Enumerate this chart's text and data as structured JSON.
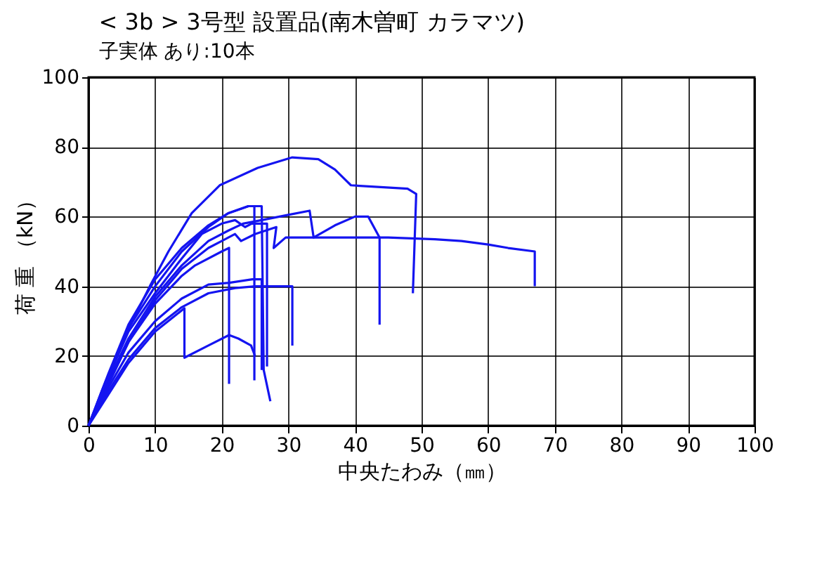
{
  "chart_data": {
    "type": "line",
    "title": "< 3b >  3号型  設置品(南木曽町  カラマツ)",
    "subtitle": "子実体 あり:10本",
    "xlabel": "中央たわみ（㎜）",
    "ylabel": "荷 重 （kN）",
    "xlim": [
      0,
      100
    ],
    "xticks": [
      0,
      10,
      20,
      30,
      40,
      50,
      60,
      70,
      80,
      90,
      100
    ],
    "ylim": [
      0,
      100
    ],
    "yticks": [
      0,
      20,
      40,
      60,
      80,
      100
    ],
    "grid": true,
    "legend": false,
    "marker": "none",
    "line_style": "solid",
    "series": [
      {
        "color": "#1414f0",
        "x": [
          0,
          2,
          5,
          9.2,
          12,
          15.5,
          19.7,
          25.4,
          30.6,
          34.5,
          37,
          39.4,
          47.9,
          49.2,
          48.7
        ],
        "values": [
          0,
          10,
          24,
          40,
          50,
          61,
          69,
          74,
          77,
          76.5,
          73.5,
          69,
          68,
          66.5,
          38
        ]
      },
      {
        "color": "#1414f0",
        "x": [
          0,
          3,
          6,
          10,
          14,
          18,
          20,
          22,
          22.9,
          25,
          28.2,
          27.8,
          29.6,
          35,
          45,
          52,
          56,
          60,
          63,
          67,
          67,
          67
        ],
        "values": [
          0,
          12,
          24,
          36,
          45,
          51,
          53,
          55,
          53,
          55,
          57,
          51,
          54,
          54,
          54,
          53.5,
          53,
          52,
          51,
          50,
          47,
          40
        ]
      },
      {
        "color": "#1414f0",
        "x": [
          0,
          3,
          6,
          10,
          14,
          18,
          21,
          23.2,
          26,
          30,
          33.2,
          33.8,
          37,
          40,
          42,
          43.7,
          43.7
        ],
        "values": [
          0,
          13,
          25,
          37,
          46,
          53,
          56,
          58,
          59,
          60.5,
          61.7,
          54,
          57.5,
          60,
          60,
          54,
          29
        ]
      },
      {
        "color": "#1414f0",
        "x": [
          0,
          3,
          6,
          10,
          14,
          18,
          21,
          24,
          26,
          26.3,
          27.3
        ],
        "values": [
          0,
          14,
          28,
          40,
          50,
          57,
          61,
          63,
          63,
          16,
          7
        ]
      },
      {
        "color": "#1414f0",
        "x": [
          0,
          3,
          6,
          10,
          14,
          18,
          21,
          24,
          24.9,
          24.9
        ],
        "values": [
          0,
          15,
          29,
          42,
          51,
          57.5,
          61,
          63,
          63,
          13
        ]
      },
      {
        "color": "#1414f0",
        "x": [
          0,
          3,
          6,
          10,
          14,
          16,
          20,
          21.1,
          21.1
        ],
        "values": [
          0,
          12,
          24,
          35,
          43,
          46,
          50,
          51,
          12
        ]
      },
      {
        "color": "#1414f0",
        "x": [
          0,
          3,
          6,
          10,
          14,
          18,
          21.1,
          24.6,
          26,
          26
        ],
        "values": [
          0,
          11,
          21,
          30,
          36.5,
          40.5,
          41,
          42,
          42,
          16
        ]
      },
      {
        "color": "#1414f0",
        "x": [
          0,
          3,
          6,
          10,
          14,
          18,
          22,
          25,
          29.6,
          30.6,
          30.6
        ],
        "values": [
          0,
          10,
          19,
          28,
          34,
          38,
          39.5,
          40,
          40,
          40,
          23
        ]
      },
      {
        "color": "#1414f0",
        "x": [
          0,
          3,
          6,
          10,
          14.4,
          14.4,
          18,
          21.1,
          22.5,
          24.4,
          25
        ],
        "values": [
          0,
          9,
          18,
          27,
          33.7,
          19.5,
          23,
          26,
          25,
          23,
          20
        ]
      },
      {
        "color": "#1414f0",
        "x": [
          0,
          3,
          6,
          10,
          14,
          17,
          20,
          22,
          23.5,
          24.5,
          26.8,
          26.8
        ],
        "values": [
          0,
          14,
          27,
          38,
          48,
          55,
          58,
          59,
          57,
          58,
          58,
          17
        ]
      }
    ]
  }
}
